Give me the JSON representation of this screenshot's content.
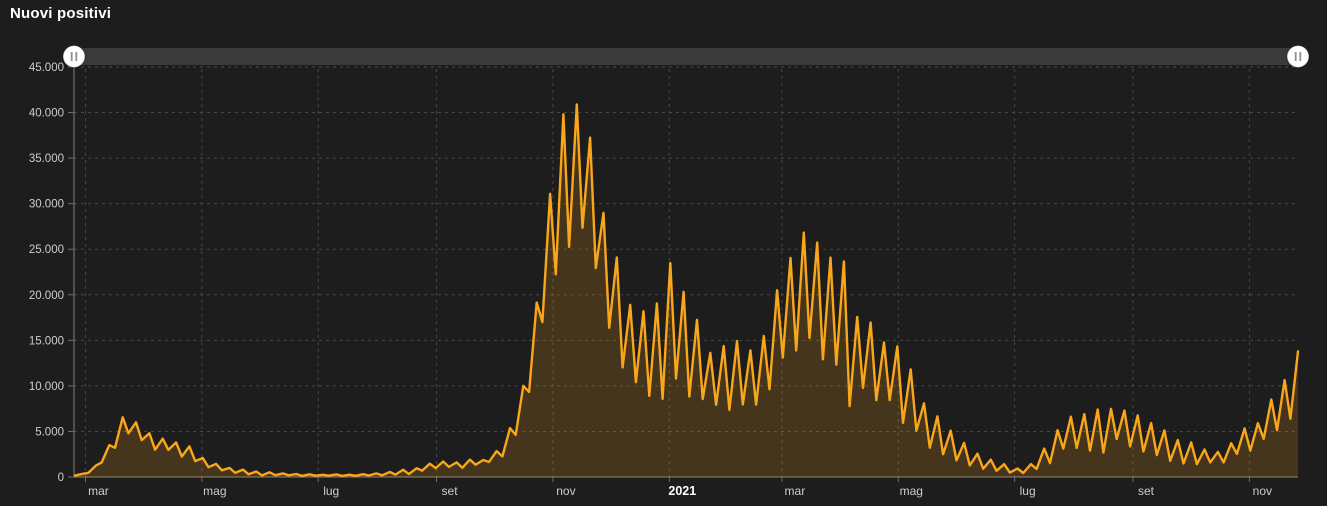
{
  "title": "Nuovi positivi",
  "colors": {
    "background": "#1d1d1d",
    "title_color": "#ffffff",
    "line": "#FAA61A",
    "area_fill": "rgba(250,166,26,0.18)",
    "axis_line": "#6f6f6f",
    "grid_line": "#474747",
    "tick_label": "#cdcdcd",
    "year_tick_label": "#ffffff",
    "slider_track": "#3a3a3a",
    "slider_handle": "#ffffff",
    "slider_handle_grip": "#8f8f8f"
  },
  "slider": {
    "left_handle": "range-start-handle",
    "right_handle": "range-end-handle"
  },
  "y_axis": {
    "min": 0,
    "max": 45000,
    "tick_interval": 5000,
    "tick_labels_top_to_bottom": [
      "45.000",
      "40.000",
      "35.000",
      "30.000",
      "25.000",
      "20.000",
      "15.000",
      "10.000",
      "5.000",
      "0"
    ]
  },
  "x_axis": {
    "start_date": "2020-02-24",
    "end_date": "2021-11-26",
    "ticks": [
      {
        "label": "mar",
        "day": 6,
        "bold": false
      },
      {
        "label": "mag",
        "day": 67,
        "bold": false
      },
      {
        "label": "lug",
        "day": 128,
        "bold": false
      },
      {
        "label": "set",
        "day": 190,
        "bold": false
      },
      {
        "label": "nov",
        "day": 251,
        "bold": false
      },
      {
        "label": "2021",
        "day": 312,
        "bold": true
      },
      {
        "label": "mar",
        "day": 371,
        "bold": false
      },
      {
        "label": "mag",
        "day": 432,
        "bold": false
      },
      {
        "label": "lug",
        "day": 493,
        "bold": false
      },
      {
        "label": "set",
        "day": 555,
        "bold": false
      },
      {
        "label": "nov",
        "day": 616,
        "bold": false
      }
    ]
  },
  "chart_data": {
    "type": "area",
    "title": "Nuovi positivi",
    "xlabel": "",
    "ylabel": "",
    "ylim": [
      0,
      45000
    ],
    "grid": true,
    "legend": "none",
    "x_unit": "weeks from 2020-02-24; two samples per week (weekly low ~Monday, weekly high ~Friday) reproducing the daily weekday/weekend oscillation",
    "series_name": "Nuovi positivi",
    "weekly_lows": [
      150,
      450,
      1600,
      3200,
      4800,
      4050,
      3000,
      2970,
      2250,
      1740,
      1080,
      740,
      450,
      300,
      180,
      200,
      190,
      120,
      140,
      140,
      120,
      130,
      170,
      190,
      260,
      320,
      700,
      980,
      1110,
      1010,
      1350,
      1650,
      2260,
      4620,
      9340,
      17010,
      22250,
      25270,
      27350,
      22930,
      16380,
      12030,
      10400,
      8900,
      8580,
      10800,
      8820,
      8560,
      7920,
      7370,
      7970,
      7950,
      9630,
      13110,
      13900,
      15270,
      12920,
      12330,
      7770,
      9790,
      8440,
      8440,
      5950,
      5080,
      3220,
      2490,
      1820,
      1270,
      910,
      680,
      480,
      440,
      890,
      1530,
      3120,
      3190,
      2900,
      2680,
      4170,
      3360,
      2800,
      2400,
      1770,
      1480,
      1400,
      1600,
      1600,
      2530,
      2890,
      4190,
      5140,
      6400
    ],
    "weekly_highs": [
      350,
      1250,
      3500,
      6550,
      6000,
      4800,
      4200,
      3800,
      3370,
      2090,
      1440,
      1000,
      810,
      600,
      520,
      400,
      330,
      300,
      240,
      280,
      250,
      310,
      390,
      550,
      800,
      950,
      1460,
      1700,
      1600,
      1910,
      1870,
      2840,
      5370,
      10010,
      19140,
      31080,
      39810,
      40900,
      37250,
      29000,
      24100,
      18900,
      18200,
      19040,
      23480,
      20330,
      17250,
      13630,
      14370,
      14930,
      13910,
      15480,
      20500,
      24040,
      26820,
      25730,
      24080,
      23650,
      17570,
      16970,
      14760,
      14320,
      11810,
      8090,
      6660,
      5080,
      3740,
      2560,
      1900,
      1400,
      930,
      1400,
      3120,
      5140,
      6620,
      6900,
      7410,
      7470,
      7300,
      6760,
      5920,
      5120,
      4060,
      3800,
      3020,
      2750,
      3700,
      5330,
      5900,
      8510,
      10640,
      13800
    ]
  }
}
